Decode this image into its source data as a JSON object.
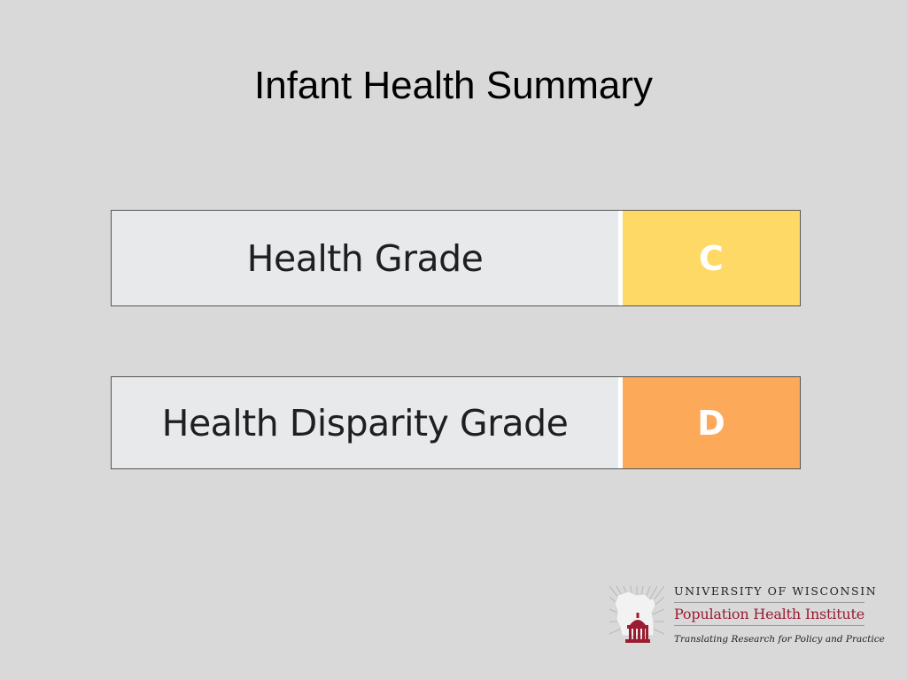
{
  "slide": {
    "title": "Infant Health Summary"
  },
  "grades": [
    {
      "label": "Health Grade",
      "value": "C",
      "color": "#ffd966"
    },
    {
      "label": "Health Disparity Grade",
      "value": "D",
      "color": "#fda95a"
    }
  ],
  "logo": {
    "university": "UNIVERSITY OF WISCONSIN",
    "institute": "Population Health Institute",
    "tagline": "Translating Research for Policy and Practice",
    "icon": "wisconsin-capitol-icon",
    "brand_color": "#9b1c31"
  }
}
